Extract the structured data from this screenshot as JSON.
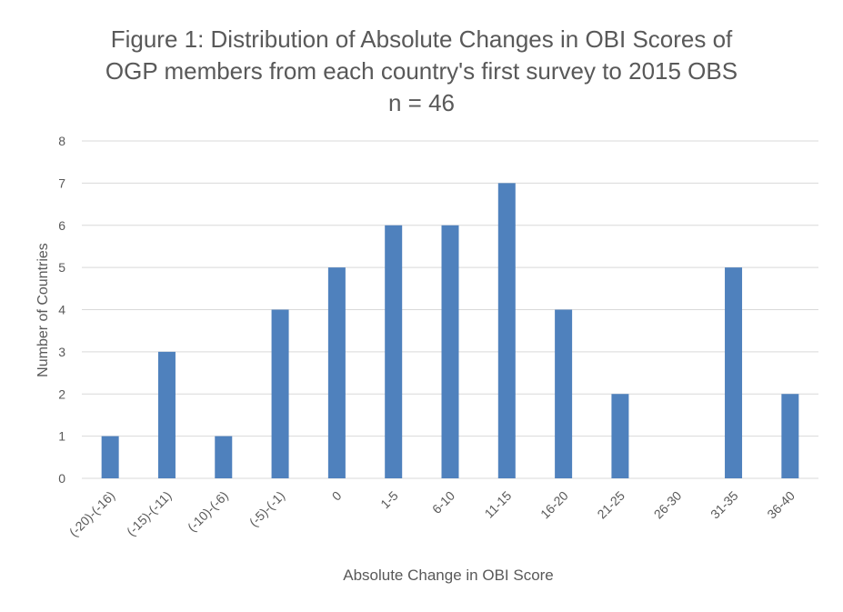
{
  "chart_data": {
    "type": "bar",
    "title_lines": [
      "Figure 1: Distribution of Absolute Changes in OBI Scores of",
      "OGP members from each country's first survey to 2015 OBS",
      "n = 46"
    ],
    "xlabel": "Absolute Change in OBI Score",
    "ylabel": "Number of Countries",
    "categories": [
      "(-20)-(-16)",
      "(-15)-(-11)",
      "(-10)-(-6)",
      "(-5)-(-1)",
      "0",
      "1-5",
      "6-10",
      "11-15",
      "16-20",
      "21-25",
      "26-30",
      "31-35",
      "36-40"
    ],
    "values": [
      1,
      3,
      1,
      4,
      5,
      6,
      6,
      7,
      4,
      2,
      0,
      5,
      2
    ],
    "ylim": [
      0,
      8
    ],
    "yticks": [
      0,
      1,
      2,
      3,
      4,
      5,
      6,
      7,
      8
    ],
    "grid": true,
    "legend": "none",
    "bar_color": "#4F81BD",
    "grid_color": "#D9D9D9",
    "text_color": "#595959"
  }
}
